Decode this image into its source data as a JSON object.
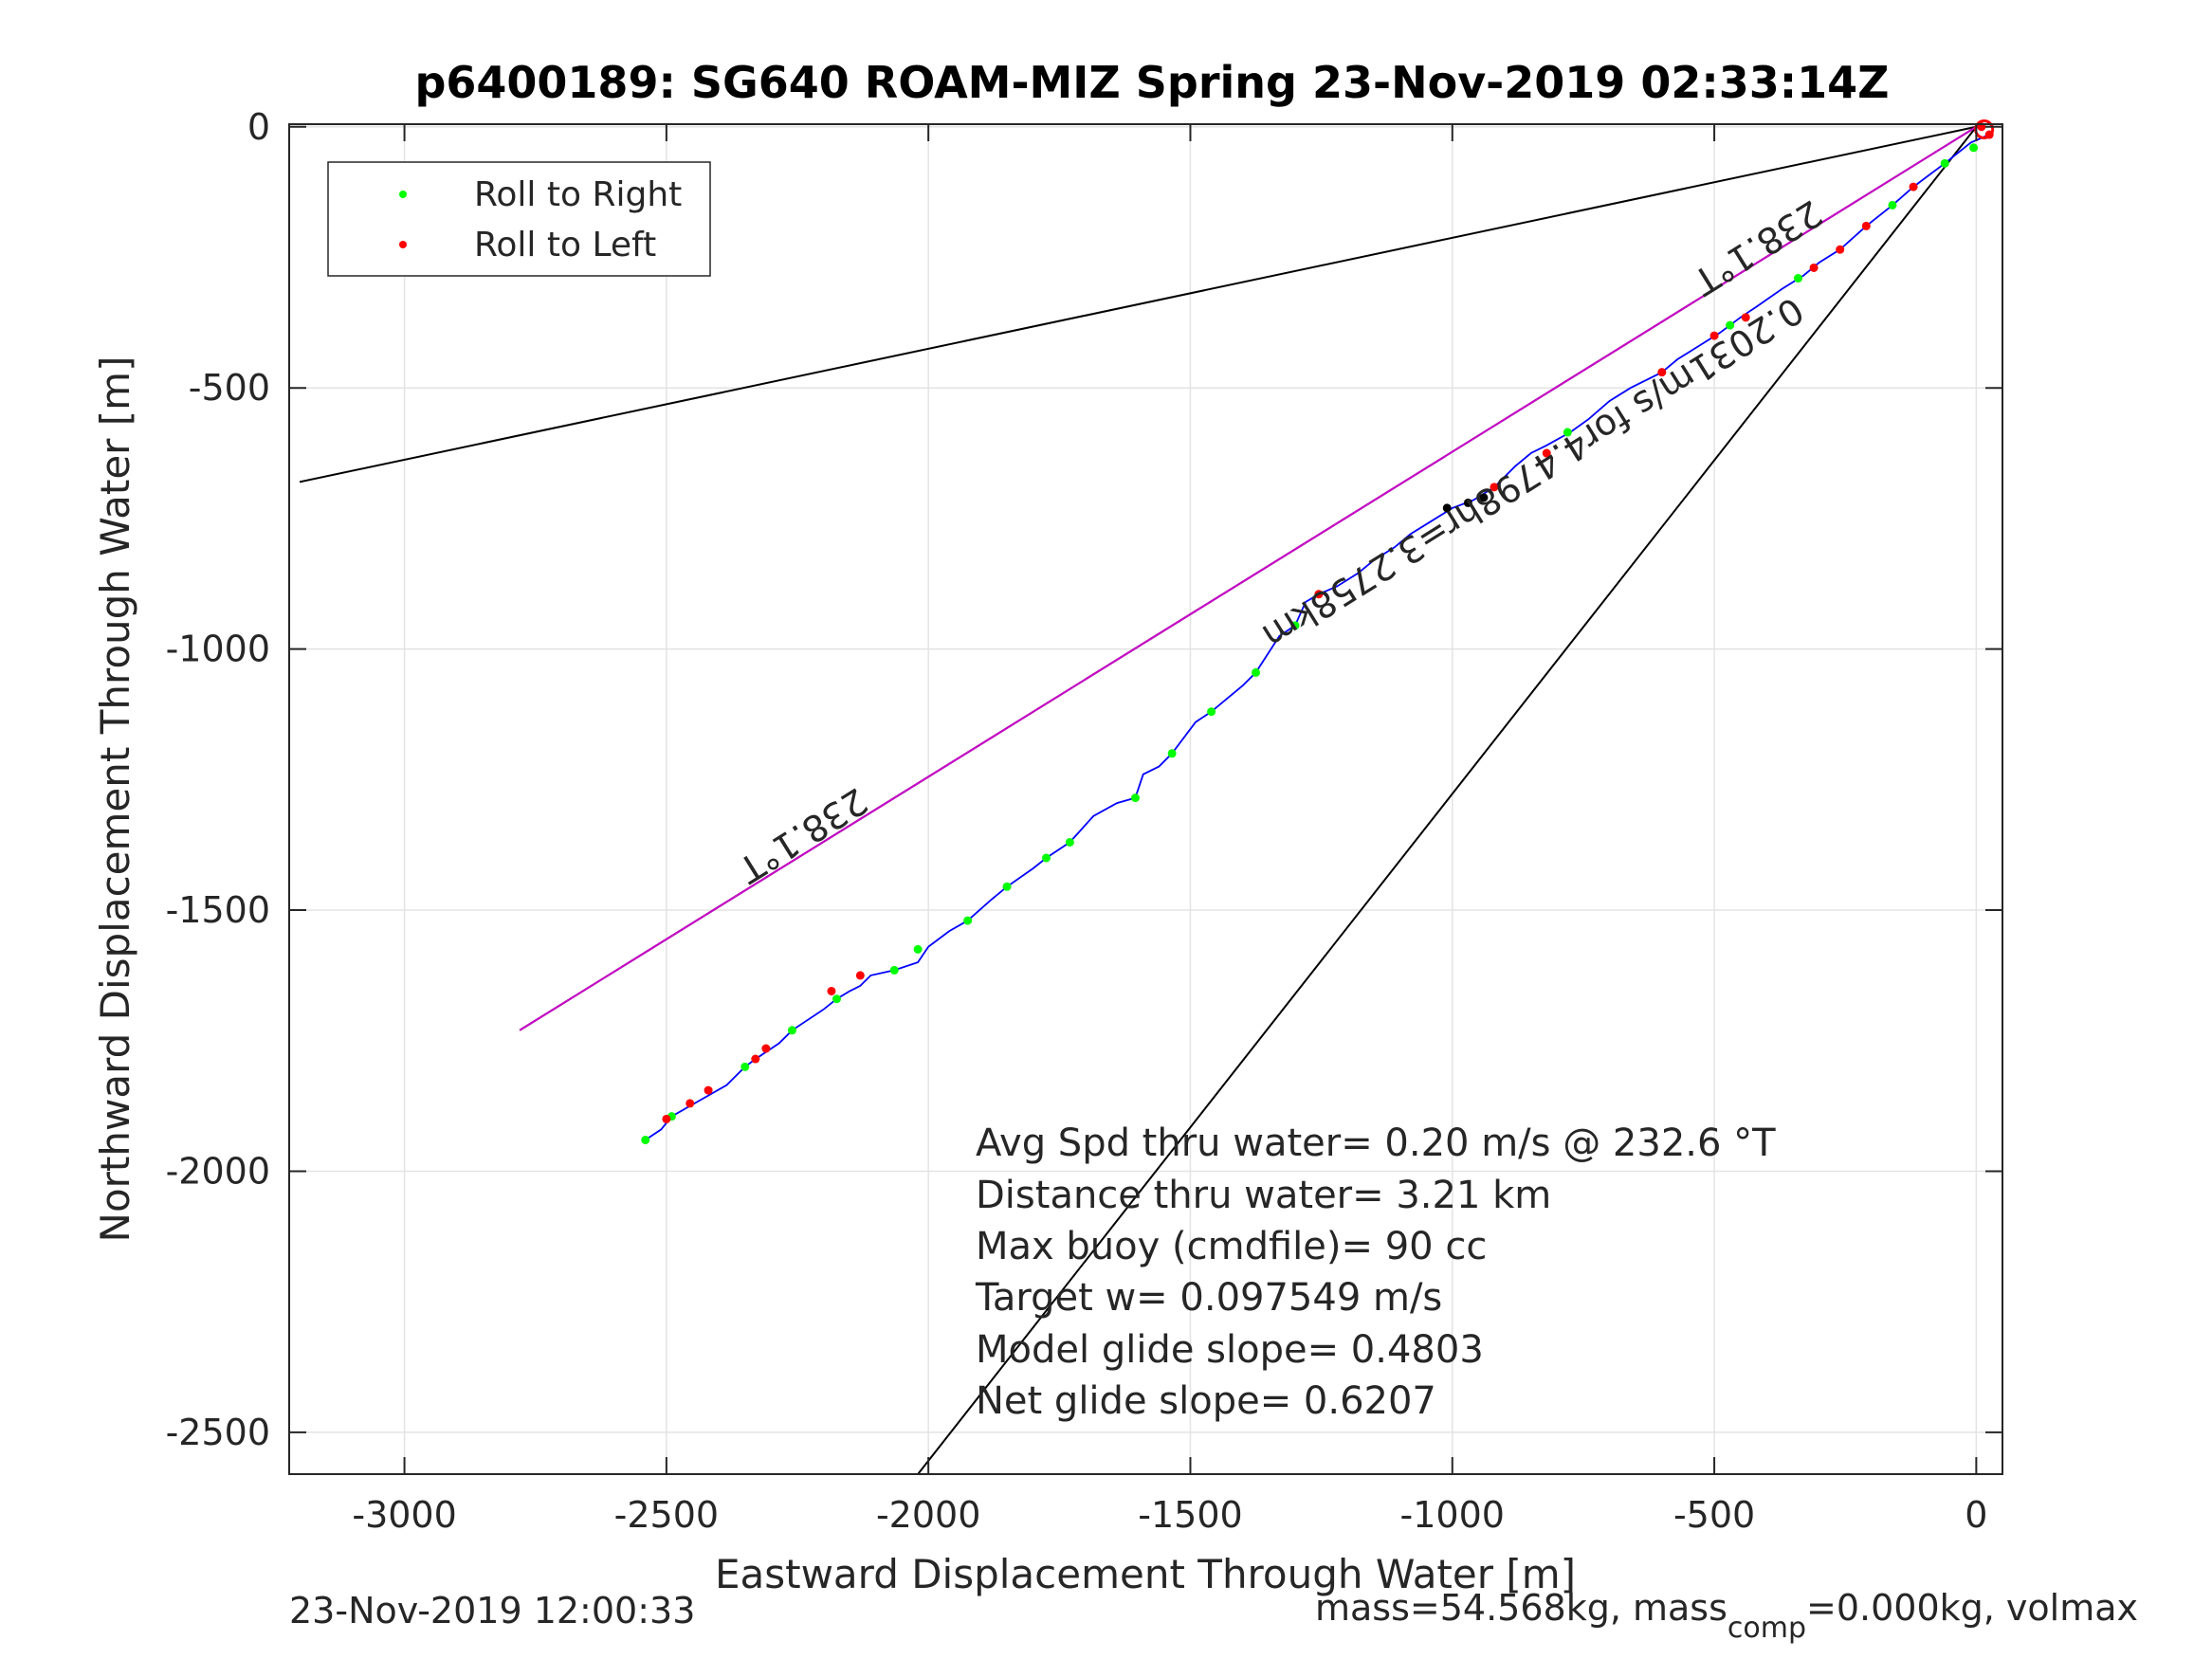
{
  "chart_data": {
    "type": "scatter",
    "title": "p6400189: SG640 ROAM-MIZ Spring 23-Nov-2019 02:33:14Z",
    "xlabel": "Eastward Displacement Through Water [m]",
    "ylabel": "Northward Displacement Through Water [m]",
    "xlim": [
      -3220,
      50
    ],
    "ylim": [
      -2580,
      5
    ],
    "xticks": [
      -3000,
      -2500,
      -2000,
      -1500,
      -1000,
      -500,
      0
    ],
    "yticks": [
      0,
      -500,
      -1000,
      -1500,
      -2000,
      -2500
    ],
    "grid": true,
    "legend_position": "top-left",
    "legend": [
      {
        "label": "Roll to Right",
        "color": "#00ff00"
      },
      {
        "label": "Roll to Left",
        "color": "#ff0000"
      }
    ],
    "series": [
      {
        "kind": "track",
        "color": "#0000ff",
        "points": [
          [
            25,
            -15
          ],
          [
            -10,
            -30
          ],
          [
            -60,
            -70
          ],
          [
            -120,
            -115
          ],
          [
            -160,
            -150
          ],
          [
            -210,
            -190
          ],
          [
            -260,
            -235
          ],
          [
            -300,
            -260
          ],
          [
            -330,
            -285
          ],
          [
            -370,
            -310
          ],
          [
            -420,
            -345
          ],
          [
            -450,
            -365
          ],
          [
            -490,
            -395
          ],
          [
            -530,
            -420
          ],
          [
            -570,
            -445
          ],
          [
            -600,
            -470
          ],
          [
            -660,
            -500
          ],
          [
            -700,
            -525
          ],
          [
            -740,
            -560
          ],
          [
            -775,
            -585
          ],
          [
            -820,
            -610
          ],
          [
            -850,
            -625
          ],
          [
            -880,
            -650
          ],
          [
            -920,
            -690
          ],
          [
            -960,
            -715
          ],
          [
            -1000,
            -730
          ],
          [
            -1040,
            -755
          ],
          [
            -1080,
            -780
          ],
          [
            -1110,
            -805
          ],
          [
            -1150,
            -830
          ],
          [
            -1180,
            -855
          ],
          [
            -1220,
            -880
          ],
          [
            -1255,
            -895
          ],
          [
            -1280,
            -910
          ],
          [
            -1300,
            -955
          ],
          [
            -1330,
            -975
          ],
          [
            -1375,
            -1045
          ],
          [
            -1400,
            -1070
          ],
          [
            -1460,
            -1120
          ],
          [
            -1490,
            -1140
          ],
          [
            -1535,
            -1200
          ],
          [
            -1560,
            -1225
          ],
          [
            -1590,
            -1240
          ],
          [
            -1605,
            -1285
          ],
          [
            -1640,
            -1295
          ],
          [
            -1685,
            -1320
          ],
          [
            -1730,
            -1370
          ],
          [
            -1775,
            -1400
          ],
          [
            -1800,
            -1420
          ],
          [
            -1850,
            -1455
          ],
          [
            -1880,
            -1480
          ],
          [
            -1925,
            -1520
          ],
          [
            -1960,
            -1540
          ],
          [
            -2000,
            -1570
          ],
          [
            -2020,
            -1600
          ],
          [
            -2065,
            -1615
          ],
          [
            -2110,
            -1625
          ],
          [
            -2130,
            -1645
          ],
          [
            -2150,
            -1655
          ],
          [
            -2175,
            -1670
          ],
          [
            -2200,
            -1690
          ],
          [
            -2260,
            -1730
          ],
          [
            -2285,
            -1755
          ],
          [
            -2330,
            -1785
          ],
          [
            -2350,
            -1800
          ],
          [
            -2385,
            -1835
          ],
          [
            -2420,
            -1855
          ],
          [
            -2455,
            -1875
          ],
          [
            -2490,
            -1895
          ],
          [
            -2510,
            -1920
          ],
          [
            -2540,
            -1940
          ]
        ]
      },
      {
        "kind": "points",
        "name": "Roll to Right",
        "color": "#00ff00",
        "points": [
          [
            -5,
            -40
          ],
          [
            -60,
            -70
          ],
          [
            -160,
            -150
          ],
          [
            -340,
            -290
          ],
          [
            -470,
            -380
          ],
          [
            -780,
            -585
          ],
          [
            -1300,
            -955
          ],
          [
            -1375,
            -1045
          ],
          [
            -1460,
            -1120
          ],
          [
            -1535,
            -1200
          ],
          [
            -1605,
            -1285
          ],
          [
            -1730,
            -1370
          ],
          [
            -1775,
            -1400
          ],
          [
            -1850,
            -1455
          ],
          [
            -1925,
            -1520
          ],
          [
            -2020,
            -1575
          ],
          [
            -2065,
            -1615
          ],
          [
            -2175,
            -1670
          ],
          [
            -2260,
            -1730
          ],
          [
            -2350,
            -1800
          ],
          [
            -2490,
            -1895
          ],
          [
            -2540,
            -1940
          ]
        ]
      },
      {
        "kind": "points",
        "name": "Roll to Left",
        "color": "#ff0000",
        "points": [
          [
            10,
            0
          ],
          [
            25,
            -15
          ],
          [
            -120,
            -115
          ],
          [
            -210,
            -190
          ],
          [
            -260,
            -235
          ],
          [
            -310,
            -270
          ],
          [
            -440,
            -365
          ],
          [
            -500,
            -400
          ],
          [
            -600,
            -470
          ],
          [
            -820,
            -625
          ],
          [
            -920,
            -690
          ],
          [
            -1255,
            -895
          ],
          [
            -2130,
            -1625
          ],
          [
            -2185,
            -1655
          ],
          [
            -2310,
            -1765
          ],
          [
            -2330,
            -1785
          ],
          [
            -2420,
            -1845
          ],
          [
            -2455,
            -1870
          ],
          [
            -2500,
            -1900
          ]
        ]
      },
      {
        "kind": "points",
        "color": "#000000",
        "points": [
          [
            -1010,
            -730
          ],
          [
            -970,
            -720
          ],
          [
            -940,
            -710
          ]
        ]
      }
    ],
    "reference_lines": [
      {
        "color": "#000000",
        "from": [
          0,
          0
        ],
        "to": [
          -3200,
          -680
        ]
      },
      {
        "color": "#000000",
        "from": [
          0,
          0
        ],
        "to": [
          -2780,
          -1730
        ]
      },
      {
        "color": "#000000",
        "from": [
          0,
          0
        ],
        "to": [
          -2020,
          -2580
        ]
      },
      {
        "color": "#cc00cc",
        "from": [
          0,
          0
        ],
        "to": [
          -2780,
          -1730
        ]
      }
    ],
    "annotations": {
      "heading_upper": "238.1°T",
      "heading_mid": "0.2031m/s for4.4798hr=3.2758km",
      "heading_lower": "238.1°T"
    },
    "stats": [
      "Avg Spd thru water=  0.20 m/s @ 232.6 °T",
      "Distance thru water=  3.21 km",
      "Max buoy (cmdfile)= 90 cc",
      "Target w= 0.097549 m/s",
      "Model glide slope= 0.4803",
      "Net glide slope= 0.6207"
    ]
  },
  "footer": {
    "timestamp": "23-Nov-2019 12:00:33",
    "mass_prefix": "mass=54.568kg, mass",
    "mass_sub": "comp",
    "mass_suffix": "=0.000kg, volmax"
  }
}
